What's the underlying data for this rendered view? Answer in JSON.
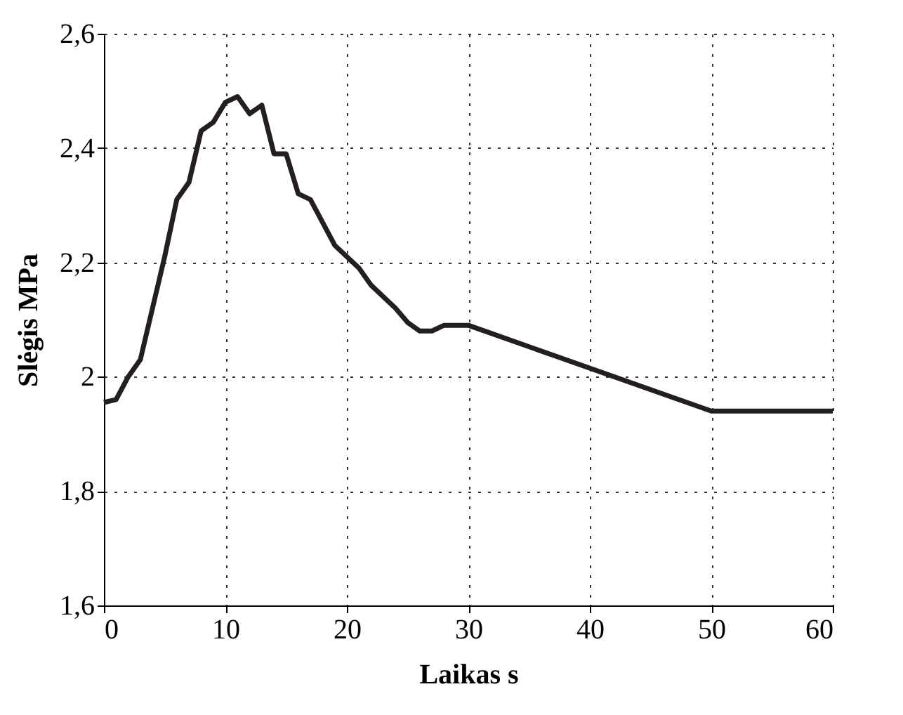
{
  "chart_data": {
    "type": "line",
    "xlabel": "Laikas s",
    "ylabel": "Slėgis MPa",
    "x": [
      0,
      1,
      2,
      3,
      4,
      5,
      6,
      7,
      8,
      9,
      10,
      11,
      12,
      13,
      14,
      15,
      16,
      17,
      18,
      19,
      20,
      21,
      22,
      23,
      24,
      25,
      26,
      27,
      28,
      29,
      30,
      50,
      60
    ],
    "series": [
      {
        "color": "#231f20",
        "values": [
          1.955,
          1.96,
          2.0,
          2.03,
          2.12,
          2.21,
          2.31,
          2.34,
          2.43,
          2.445,
          2.48,
          2.49,
          2.46,
          2.475,
          2.39,
          2.39,
          2.32,
          2.31,
          2.27,
          2.23,
          2.21,
          2.19,
          2.16,
          2.14,
          2.12,
          2.095,
          2.08,
          2.08,
          2.09,
          2.09,
          2.09,
          1.94,
          1.94
        ]
      }
    ],
    "xlim": [
      0,
      60
    ],
    "xticks": [
      0,
      10,
      20,
      30,
      40,
      50,
      60
    ],
    "ylim": [
      1.6,
      2.6
    ],
    "yticks": [
      {
        "value": 1.6,
        "label": "1,6"
      },
      {
        "value": 1.8,
        "label": "1,8"
      },
      {
        "value": 2,
        "label": "2"
      },
      {
        "value": 2.2,
        "label": "2,2"
      },
      {
        "value": 2.4,
        "label": "2,4"
      },
      {
        "value": 2.6,
        "label": "2,6"
      }
    ],
    "grid": true,
    "legend": false,
    "marker": "none",
    "line_style": "solid"
  }
}
